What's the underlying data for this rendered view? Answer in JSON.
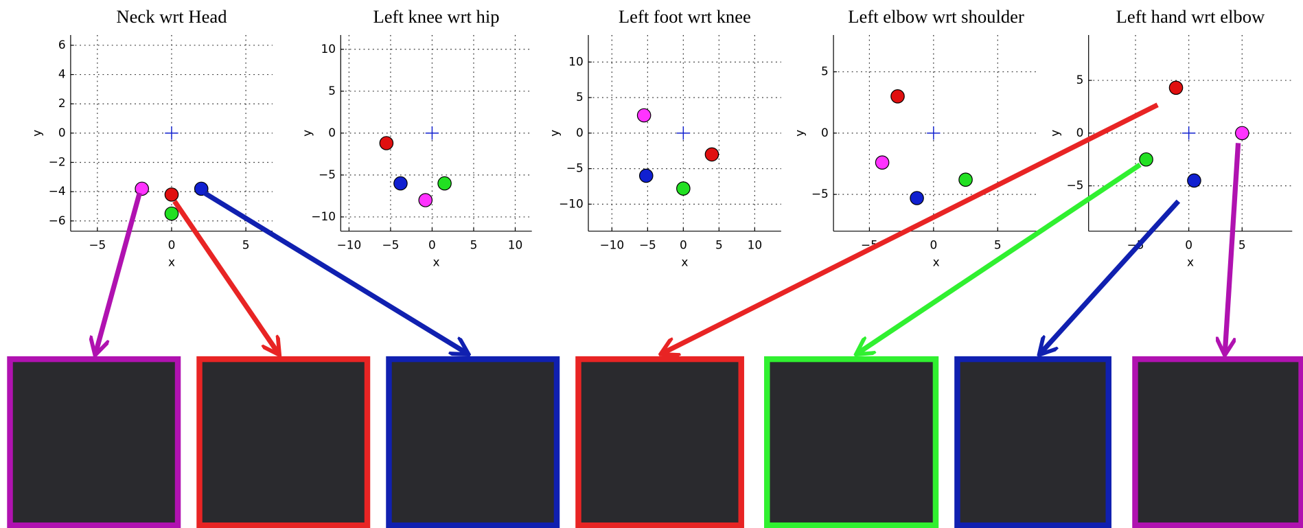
{
  "chart_data": [
    {
      "type": "scatter",
      "title": "Neck wrt Head",
      "xlabel": "x",
      "ylabel": "y",
      "xlim": [
        -6.8,
        6.8
      ],
      "ylim": [
        -6.7,
        6.7
      ],
      "xticks": [
        {
          "value": -5,
          "label": "−5"
        },
        0,
        5
      ],
      "yticks": [
        {
          "value": -6,
          "label": "−6"
        },
        {
          "value": -4,
          "label": "−4"
        },
        {
          "value": -2,
          "label": "−2"
        },
        0,
        2,
        4,
        6
      ],
      "grid": true,
      "series": [
        {
          "color": "#ff33ff",
          "x": [
            -2
          ],
          "values": [
            -3.8
          ]
        },
        {
          "color": "#e01010",
          "x": [
            0
          ],
          "values": [
            -4.2
          ]
        },
        {
          "color": "#1020d0",
          "x": [
            2
          ],
          "values": [
            -3.8
          ]
        },
        {
          "color": "#22e022",
          "x": [
            0
          ],
          "values": [
            -5.5
          ]
        }
      ]
    },
    {
      "type": "scatter",
      "title": "Left knee wrt hip",
      "xlabel": "x",
      "ylabel": "y",
      "xlim": [
        -11,
        12
      ],
      "ylim": [
        -11.7,
        11.7
      ],
      "xticks": [
        {
          "value": -10,
          "label": "−10"
        },
        {
          "value": -5,
          "label": "−5"
        },
        0,
        5,
        10
      ],
      "yticks": [
        {
          "value": -10,
          "label": "−10"
        },
        {
          "value": -5,
          "label": "−5"
        },
        0,
        5,
        10
      ],
      "grid": true,
      "series": [
        {
          "color": "#e01010",
          "x": [
            -5.5
          ],
          "values": [
            -1.2
          ]
        },
        {
          "color": "#1020d0",
          "x": [
            -3.8
          ],
          "values": [
            -6
          ]
        },
        {
          "color": "#ff33ff",
          "x": [
            -0.8
          ],
          "values": [
            -8
          ]
        },
        {
          "color": "#22e022",
          "x": [
            1.5
          ],
          "values": [
            -6
          ]
        }
      ]
    },
    {
      "type": "scatter",
      "title": "Left foot wrt knee",
      "xlabel": "x",
      "ylabel": "y",
      "xlim": [
        -13.3,
        13.7
      ],
      "ylim": [
        -13.8,
        13.8
      ],
      "xticks": [
        {
          "value": -10,
          "label": "−10"
        },
        {
          "value": -5,
          "label": "−5"
        },
        0,
        5,
        10
      ],
      "yticks": [
        {
          "value": -10,
          "label": "−10"
        },
        {
          "value": -5,
          "label": "−5"
        },
        0,
        5,
        10
      ],
      "grid": true,
      "series": [
        {
          "color": "#ff33ff",
          "x": [
            -5.5
          ],
          "values": [
            2.5
          ]
        },
        {
          "color": "#1020d0",
          "x": [
            -5.2
          ],
          "values": [
            -6
          ]
        },
        {
          "color": "#22e022",
          "x": [
            0
          ],
          "values": [
            -7.8
          ]
        },
        {
          "color": "#e01010",
          "x": [
            4
          ],
          "values": [
            -3
          ]
        }
      ]
    },
    {
      "type": "scatter",
      "title": "Left elbow wrt shoulder",
      "xlabel": "x",
      "ylabel": "y",
      "xlim": [
        -7.8,
        8.2
      ],
      "ylim": [
        -8,
        8
      ],
      "xticks": [
        {
          "value": -5,
          "label": "−5"
        },
        0,
        5
      ],
      "yticks": [
        {
          "value": -5,
          "label": "−5"
        },
        0,
        5
      ],
      "grid": true,
      "series": [
        {
          "color": "#e01010",
          "x": [
            -2.8
          ],
          "values": [
            3
          ]
        },
        {
          "color": "#ff33ff",
          "x": [
            -4
          ],
          "values": [
            -2.4
          ]
        },
        {
          "color": "#1020d0",
          "x": [
            -1.3
          ],
          "values": [
            -5.3
          ]
        },
        {
          "color": "#22e022",
          "x": [
            2.5
          ],
          "values": [
            -3.8
          ]
        }
      ]
    },
    {
      "type": "scatter",
      "title": "Left hand wrt elbow",
      "xlabel": "x",
      "ylabel": "y",
      "xlim": [
        -9.4,
        9.7
      ],
      "ylim": [
        -9.3,
        9.3
      ],
      "xticks": [
        {
          "value": -5,
          "label": "−5"
        },
        0,
        5
      ],
      "yticks": [
        {
          "value": -5,
          "label": "−5"
        },
        0,
        5
      ],
      "grid": true,
      "series": [
        {
          "color": "#e01010",
          "x": [
            -1.2
          ],
          "values": [
            4.3
          ]
        },
        {
          "color": "#22e022",
          "x": [
            -4
          ],
          "values": [
            -2.5
          ]
        },
        {
          "color": "#1020d0",
          "x": [
            0.5
          ],
          "values": [
            -4.5
          ]
        },
        {
          "color": "#ff33ff",
          "x": [
            5
          ],
          "values": [
            0
          ]
        }
      ]
    }
  ]
}
